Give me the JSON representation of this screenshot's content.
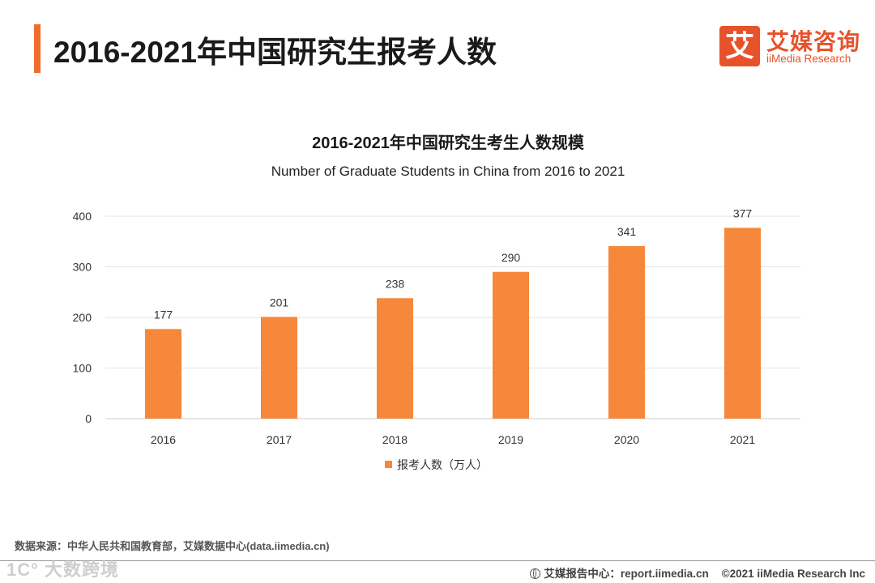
{
  "header": {
    "title": "2016-2021年中国研究生报考人数"
  },
  "logo": {
    "char": "艾",
    "cn": "艾媒咨询",
    "en": "iiMedia Research",
    "brand_color": "#e8522a"
  },
  "chart_data": {
    "type": "bar",
    "title": "2016-2021年中国研究生考生人数规模",
    "subtitle": "Number of Graduate Students in China from 2016 to 2021",
    "categories": [
      "2016",
      "2017",
      "2018",
      "2019",
      "2020",
      "2021"
    ],
    "series": [
      {
        "name": "报考人数（万人）",
        "values": [
          177,
          201,
          238,
          290,
          341,
          377
        ],
        "color": "#f5883a"
      }
    ],
    "ylim": [
      0,
      400
    ],
    "yticks": [
      0,
      100,
      200,
      300,
      400
    ],
    "grid": true,
    "legend": "bottom-center",
    "xlabel": "",
    "ylabel": ""
  },
  "footer": {
    "source": "数据来源：中华人民共和国教育部，艾媒数据中心(data.iimedia.cn)",
    "report_center": "艾媒报告中心：report.iimedia.cn",
    "copyright": "©2021  iiMedia Research  Inc",
    "watermark": "1C° 大数跨境"
  }
}
